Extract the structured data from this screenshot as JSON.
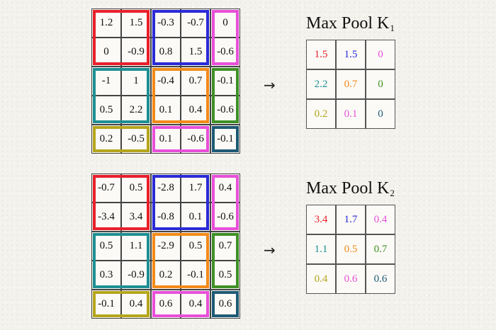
{
  "colors": {
    "red": "#e8202a",
    "blue": "#2a2ad6",
    "magenta": "#e84fd8",
    "teal": "#1f8f93",
    "orange": "#f28a1a",
    "green": "#3f8f25",
    "olive": "#b5a51c",
    "navy": "#1e5a75"
  },
  "arrow_symbol": "→",
  "figures": [
    {
      "title_main": "Max Pool K",
      "title_sub": "1",
      "input": [
        [
          "1.2",
          "1.5",
          "-0.3",
          "-0.7",
          "0"
        ],
        [
          "0",
          "-0.9",
          "0.8",
          "1.5",
          "-0.6"
        ],
        [
          "-1",
          "1",
          "-0.4",
          "0.7",
          "-0.1"
        ],
        [
          "0.5",
          "2.2",
          "0.1",
          "0.4",
          "-0.6"
        ],
        [
          "0.2",
          "-0.5",
          "0.1",
          "-0.6",
          "-0.1"
        ]
      ],
      "output": [
        [
          "1.5",
          "1.5",
          "0"
        ],
        [
          "2.2",
          "0.7",
          "0"
        ],
        [
          "0.2",
          "0.1",
          "0"
        ]
      ]
    },
    {
      "title_main": "Max Pool K",
      "title_sub": "2",
      "input": [
        [
          "-0.7",
          "0.5",
          "-2.8",
          "1.7",
          "0.4"
        ],
        [
          "-3.4",
          "3.4",
          "-0.8",
          "0.1",
          "-0.6"
        ],
        [
          "0.5",
          "1.1",
          "-2.9",
          "0.5",
          "0.7"
        ],
        [
          "0.3",
          "-0.9",
          "0.2",
          "-0.1",
          "0.5"
        ],
        [
          "-0.1",
          "0.4",
          "0.6",
          "0.4",
          "0.6"
        ]
      ],
      "output": [
        [
          "3.4",
          "1.7",
          "0.4"
        ],
        [
          "1.1",
          "0.5",
          "0.7"
        ],
        [
          "0.4",
          "0.6",
          "0.6"
        ]
      ]
    }
  ],
  "pool_colors": [
    [
      "red",
      "blue",
      "magenta"
    ],
    [
      "teal",
      "orange",
      "green"
    ],
    [
      "olive",
      "magenta",
      "navy"
    ]
  ]
}
